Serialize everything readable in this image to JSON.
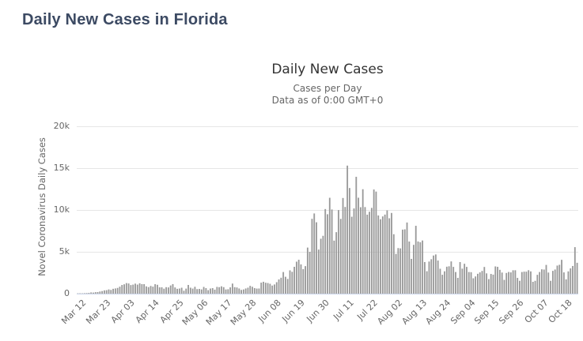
{
  "page": {
    "title": "Daily New Cases in Florida"
  },
  "chart": {
    "title": "Daily New Cases",
    "subtitle_line1": "Cases per Day",
    "subtitle_line2": "Data as of 0:00 GMT+0",
    "y_axis_title": "Novel Coronavirus Daily Cases"
  },
  "colors": {
    "page_title": "#3c4a63",
    "bar": "#9a9a9a",
    "gridline": "#e6e6e6",
    "axis_line": "#ccd6eb",
    "chart_title": "#333333",
    "axis_text": "#666666"
  },
  "chart_data": {
    "type": "bar",
    "title": "Daily New Cases",
    "subtitle": [
      "Cases per Day",
      "Data as of 0:00 GMT+0"
    ],
    "xlabel": "",
    "ylabel": "Novel Coronavirus Daily Cases",
    "ylim": [
      0,
      20000
    ],
    "y_tick_labels": [
      "0",
      "5k",
      "10k",
      "15k",
      "20k"
    ],
    "grid": true,
    "legend": false,
    "x_start_date": "Mar 12",
    "x_end_date": "Oct 24",
    "x_tick_interval_days": 11,
    "x_tick_labels": [
      "Mar 12",
      "Mar 23",
      "Apr 03",
      "Apr 14",
      "Apr 25",
      "May 06",
      "May 17",
      "May 28",
      "Jun 08",
      "Jun 19",
      "Jun 30",
      "Jul 11",
      "Jul 22",
      "Aug 02",
      "Aug 13",
      "Aug 24",
      "Sep 04",
      "Sep 15",
      "Sep 26",
      "Oct 07",
      "Oct 18"
    ],
    "values": [
      35,
      43,
      30,
      58,
      66,
      88,
      146,
      126,
      176,
      184,
      253,
      306,
      390,
      414,
      505,
      445,
      578,
      624,
      683,
      832,
      1034,
      1115,
      1260,
      1217,
      1024,
      1080,
      1196,
      1081,
      1232,
      1140,
      1134,
      867,
      779,
      919,
      837,
      1128,
      1058,
      752,
      759,
      592,
      773,
      743,
      977,
      1139,
      740,
      577,
      610,
      708,
      347,
      602,
      1038,
      712,
      605,
      819,
      542,
      563,
      506,
      802,
      662,
      416,
      612,
      660,
      479,
      808,
      776,
      875,
      777,
      502,
      527,
      752,
      1204,
      776,
      740,
      616,
      446,
      502,
      617,
      714,
      927,
      820,
      667,
      608,
      617,
      1317,
      1419,
      1305,
      1270,
      1180,
      966,
      1096,
      1371,
      1698,
      1902,
      2581,
      2016,
      1758,
      2783,
      2610,
      3207,
      3822,
      4049,
      3494,
      2926,
      3289,
      5508,
      5004,
      8942,
      9585,
      8530,
      5266,
      6563,
      6912,
      10109,
      9488,
      11458,
      10059,
      6336,
      7347,
      9989,
      8935,
      11433,
      10360,
      15300,
      12624,
      9194,
      10181,
      13965,
      11466,
      10328,
      12478,
      10347,
      9440,
      9785,
      10249,
      12444,
      12199,
      9344,
      8892,
      9230,
      9446,
      9956,
      9007,
      9642,
      7104,
      4752,
      5446,
      5409,
      7650,
      7686,
      8502,
      6229,
      4155,
      5831,
      8109,
      6236,
      6148,
      6352,
      3779,
      2678,
      3838,
      4115,
      4555,
      4684,
      3957,
      2974,
      2258,
      2673,
      3220,
      3269,
      3853,
      3197,
      2583,
      1885,
      3773,
      2987,
      3571,
      3198,
      2583,
      2564,
      1838,
      2056,
      2372,
      2541,
      2715,
      3190,
      2423,
      1736,
      2355,
      2273,
      3255,
      3204,
      2847,
      2521,
      1645,
      2470,
      2590,
      2541,
      2795,
      2795,
      1882,
      1537,
      2583,
      2628,
      2628,
      2800,
      2660,
      1415,
      1533,
      2251,
      2582,
      2908,
      2880,
      3433,
      2522,
      1533,
      2725,
      2883,
      3356,
      3449,
      4044,
      2539,
      1707,
      2660,
      3016,
      3306,
      5557,
      3689
    ]
  }
}
